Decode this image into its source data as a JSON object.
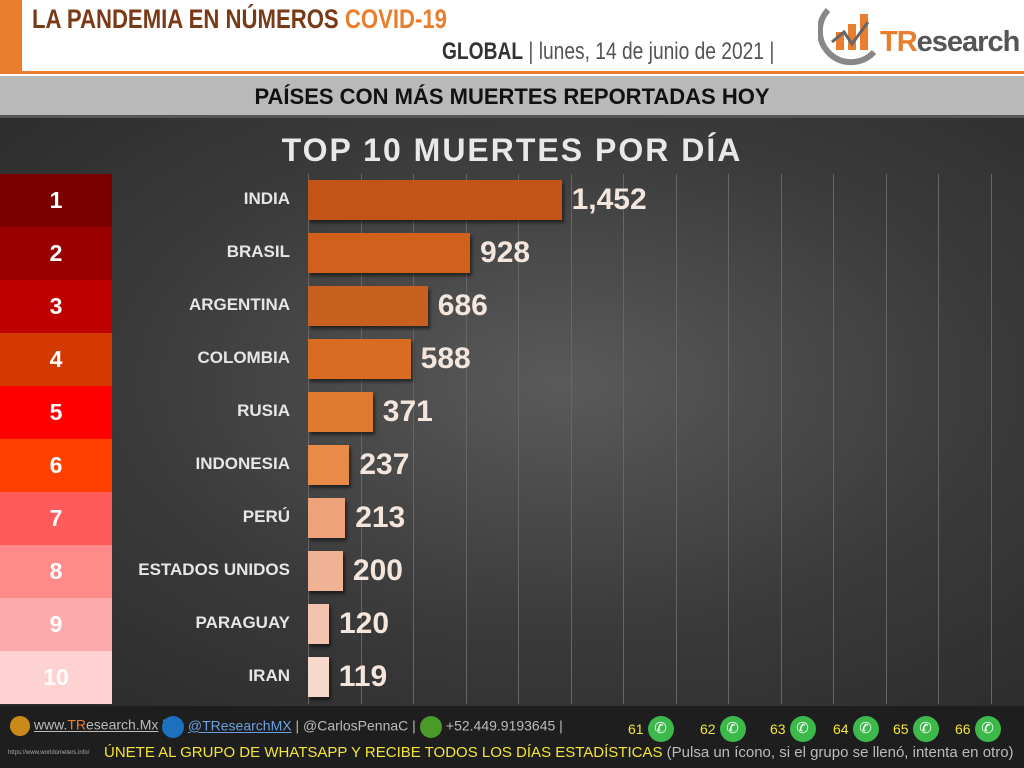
{
  "header": {
    "title_main": "LA PANDEMIA EN NÚMEROS",
    "title_accent": "COVID-19",
    "scope": "GLOBAL",
    "date": "lunes, 14 de junio de 2021",
    "logo_text_accent": "TR",
    "logo_text": "esearch"
  },
  "subtitle": "PAÍSES CON MÁS MUERTES REPORTADAS HOY",
  "chart_data": {
    "type": "bar",
    "orientation": "horizontal",
    "title": "TOP 10 MUERTES POR DÍA",
    "ranks": [
      "1",
      "2",
      "3",
      "4",
      "5",
      "6",
      "7",
      "8",
      "9",
      "10"
    ],
    "rank_colors": [
      "#7a0000",
      "#990000",
      "#c00000",
      "#d43a00",
      "#ff0000",
      "#ff4000",
      "#ff5b5b",
      "#ff8a8a",
      "#ffaaaa",
      "#ffd2d2"
    ],
    "categories": [
      "INDIA",
      "BRASIL",
      "ARGENTINA",
      "COLOMBIA",
      "RUSIA",
      "INDONESIA",
      "PERÚ",
      "ESTADOS UNIDOS",
      "PARAGUAY",
      "IRAN"
    ],
    "values": [
      1452,
      928,
      686,
      588,
      371,
      237,
      213,
      200,
      120,
      119
    ],
    "value_labels": [
      "1,452",
      "928",
      "686",
      "588",
      "371",
      "237",
      "213",
      "200",
      "120",
      "119"
    ],
    "bar_colors": [
      "#c25418",
      "#d0601c",
      "#c8601e",
      "#d86c22",
      "#e07a30",
      "#e88a48",
      "#eda27a",
      "#f0b294",
      "#f2c4b0",
      "#f6d8cc"
    ],
    "xlim": [
      0,
      4100
    ],
    "grid": true
  },
  "footer": {
    "website_prefix": "www.",
    "website_accent": "TR",
    "website_suffix": "esearch.Mx",
    "twitter": "@TResearchMX",
    "handle2": "@CarlosPennaC",
    "phone": "+52.449.9193645",
    "groups": [
      "61",
      "62",
      "63",
      "64",
      "65",
      "66"
    ],
    "cta": "ÚNETE AL GRUPO DE WHATSAPP Y RECIBE TODOS LOS DÍAS ESTADÍSTICAS",
    "cta_note": "(Pulsa un ícono, si el grupo se llenó, intenta en otro)",
    "source": "https://www.worldometers.info/"
  }
}
